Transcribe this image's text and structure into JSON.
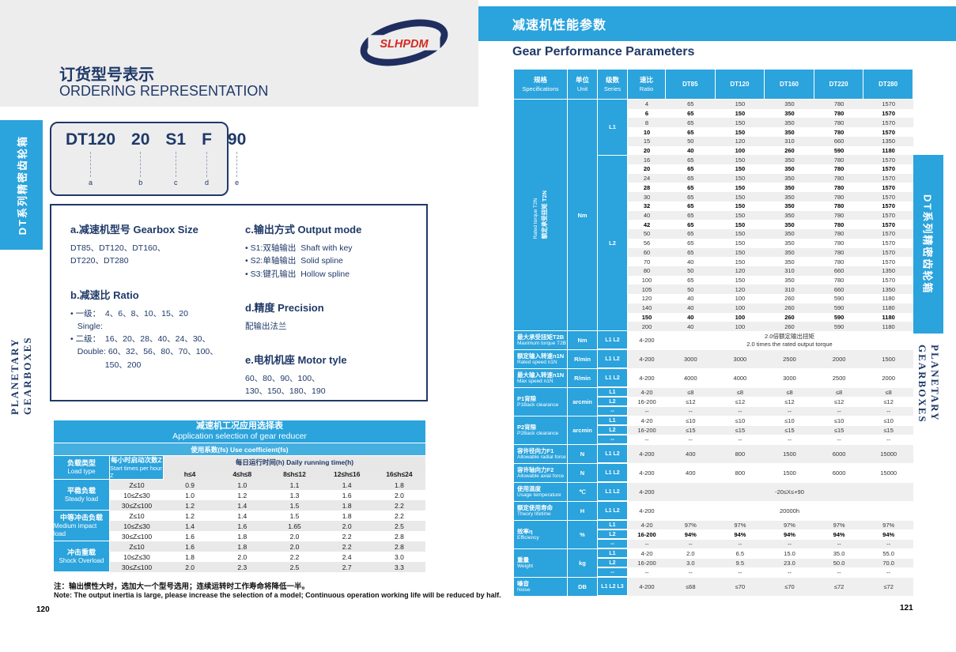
{
  "colors": {
    "accent_blue": "#2BA3DC",
    "subheader_blue": "#45AFE0",
    "navy": "#1F3968",
    "band_gray": "#EDEDEE",
    "stripe_gray": "#EFEFEF",
    "logo_red": "#D42B1E"
  },
  "left": {
    "page_number": "120",
    "logo_text": "SLHPDM",
    "title_cn": "订货型号表示",
    "title_en": "ORDERING REPRESENTATION",
    "sidebar_tab": "DT系列精密齿轮箱",
    "sidebar_series": "PLANETARY GEARBOXES",
    "model_tokens": [
      {
        "code": "DT120",
        "key": "a"
      },
      {
        "code": "20",
        "key": "b"
      },
      {
        "code": "S1",
        "key": "c"
      },
      {
        "code": "F",
        "key": "d"
      },
      {
        "code": "90",
        "key": "e"
      }
    ],
    "legend_col1": [
      {
        "heading": "a.减速机型号 Gearbox Size",
        "lines": [
          "DT85、DT120、DT160、",
          "DT220、DT280"
        ]
      },
      {
        "heading": "b.减速比 Ratio",
        "lines": [
          "• 一级：  4、6、8、10、15、20",
          "   Single:",
          "• 二级：  16、20、28、40、24、30、",
          "   Double: 60、32、56、80、70、100、",
          "               150、200"
        ]
      }
    ],
    "legend_col2": [
      {
        "heading": "c.输出方式 Output mode",
        "lines": [
          "• S1:双轴输出  Shaft with key",
          "• S2:单轴输出  Solid spline",
          "• S3:键孔输出  Hollow spline"
        ]
      },
      {
        "heading": "d.精度 Precision",
        "lines": [
          "配输出法兰"
        ]
      },
      {
        "heading": "e.电机机座 Motor tyle",
        "lines": [
          "60、80、90、100、",
          "130、150、180、190"
        ]
      }
    ],
    "app_table": {
      "title_cn": "减速机工况应用选择表",
      "title_en": "Application selection of gear reducer",
      "coeff": "使用系数(fs)   Use coefficient(fs)",
      "load_cn": "负载类型",
      "load_en": "Load type",
      "start_cn": "每小时启动次数Z",
      "start_en": "Start times per hour Z",
      "daily": "每日运行时间(h)   Daily running time(h)",
      "time_cols": [
        "h≤4",
        "4≤h≤8",
        "8≤h≤12",
        "12≤h≤16",
        "16≤h≤24"
      ],
      "groups": [
        {
          "cn": "平稳负载",
          "en": "Steady load",
          "rows": [
            [
              "Z≤10",
              "0.9",
              "1.0",
              "1.1",
              "1.4",
              "1.8"
            ],
            [
              "10≤Z≤30",
              "1.0",
              "1.2",
              "1.3",
              "1.6",
              "2.0"
            ],
            [
              "30≤Z≤100",
              "1.2",
              "1.4",
              "1.5",
              "1.8",
              "2.2"
            ]
          ]
        },
        {
          "cn": "中等冲击负载",
          "en": "Medium impact load",
          "rows": [
            [
              "Z≤10",
              "1.2",
              "1.4",
              "1.5",
              "1.8",
              "2.2"
            ],
            [
              "10≤Z≤30",
              "1.4",
              "1.6",
              "1.65",
              "2.0",
              "2.5"
            ],
            [
              "30≤Z≤100",
              "1.6",
              "1.8",
              "2.0",
              "2.2",
              "2.8"
            ]
          ]
        },
        {
          "cn": "冲击重载",
          "en": "Shock Overload",
          "rows": [
            [
              "Z≤10",
              "1.6",
              "1.8",
              "2.0",
              "2.2",
              "2.8"
            ],
            [
              "10≤Z≤30",
              "1.8",
              "2.0",
              "2.2",
              "2.4",
              "3.0"
            ],
            [
              "30≤Z≤100",
              "2.0",
              "2.3",
              "2.5",
              "2.7",
              "3.3"
            ]
          ]
        }
      ]
    },
    "note_cn": "注：输出惯性大时，选加大一个型号选用；连续运转时工作寿命将降低一半。",
    "note_en": "Note: The output inertia is large, please increase the selection of a model; Continuous operation working life will be reduced by half."
  },
  "right": {
    "page_number": "121",
    "banner_cn": "减速机性能参数",
    "title_en": "Gear Performance Parameters",
    "sidebar_tab": "DT系列精密齿轮箱",
    "sidebar_series": "PLANETARY GEARBOXES",
    "table": {
      "header": {
        "specs_cn": "规格",
        "specs_en": "Specifications",
        "unit_cn": "单位",
        "unit_en": "Unit",
        "series_cn": "级数",
        "series_en": "Series",
        "ratio_cn": "速比",
        "ratio_en": "Ratio",
        "models": [
          "DT85",
          "DT120",
          "DT160",
          "DT220",
          "DT280"
        ]
      },
      "torque": {
        "label_cn": "额定承受扭矩 T2N",
        "label_en": "Rated torque T2N",
        "unit": "Nm",
        "sections": [
          {
            "series": "L1",
            "rows": [
              {
                "ratio": "4",
                "values": [
                  "65",
                  "150",
                  "350",
                  "780",
                  "1570"
                ],
                "bold": false
              },
              {
                "ratio": "6",
                "values": [
                  "65",
                  "150",
                  "350",
                  "780",
                  "1570"
                ],
                "bold": true
              },
              {
                "ratio": "8",
                "values": [
                  "65",
                  "150",
                  "350",
                  "780",
                  "1570"
                ],
                "bold": false
              },
              {
                "ratio": "10",
                "values": [
                  "65",
                  "150",
                  "350",
                  "780",
                  "1570"
                ],
                "bold": true
              },
              {
                "ratio": "15",
                "values": [
                  "50",
                  "120",
                  "310",
                  "660",
                  "1350"
                ],
                "bold": false
              },
              {
                "ratio": "20",
                "values": [
                  "40",
                  "100",
                  "260",
                  "590",
                  "1180"
                ],
                "bold": true
              }
            ]
          },
          {
            "series": "L2",
            "rows": [
              {
                "ratio": "16",
                "values": [
                  "65",
                  "150",
                  "350",
                  "780",
                  "1570"
                ],
                "bold": false
              },
              {
                "ratio": "20",
                "values": [
                  "65",
                  "150",
                  "350",
                  "780",
                  "1570"
                ],
                "bold": true
              },
              {
                "ratio": "24",
                "values": [
                  "65",
                  "150",
                  "350",
                  "780",
                  "1570"
                ],
                "bold": false
              },
              {
                "ratio": "28",
                "values": [
                  "65",
                  "150",
                  "350",
                  "780",
                  "1570"
                ],
                "bold": true
              },
              {
                "ratio": "30",
                "values": [
                  "65",
                  "150",
                  "350",
                  "780",
                  "1570"
                ],
                "bold": false
              },
              {
                "ratio": "32",
                "values": [
                  "65",
                  "150",
                  "350",
                  "780",
                  "1570"
                ],
                "bold": true
              },
              {
                "ratio": "40",
                "values": [
                  "65",
                  "150",
                  "350",
                  "780",
                  "1570"
                ],
                "bold": false
              },
              {
                "ratio": "42",
                "values": [
                  "65",
                  "150",
                  "350",
                  "780",
                  "1570"
                ],
                "bold": true
              },
              {
                "ratio": "50",
                "values": [
                  "65",
                  "150",
                  "350",
                  "780",
                  "1570"
                ],
                "bold": false
              },
              {
                "ratio": "56",
                "values": [
                  "65",
                  "150",
                  "350",
                  "780",
                  "1570"
                ],
                "bold": false
              },
              {
                "ratio": "60",
                "values": [
                  "65",
                  "150",
                  "350",
                  "780",
                  "1570"
                ],
                "bold": false
              },
              {
                "ratio": "70",
                "values": [
                  "40",
                  "150",
                  "350",
                  "780",
                  "1570"
                ],
                "bold": false
              },
              {
                "ratio": "80",
                "values": [
                  "50",
                  "120",
                  "310",
                  "660",
                  "1350"
                ],
                "bold": false
              },
              {
                "ratio": "100",
                "values": [
                  "65",
                  "150",
                  "350",
                  "780",
                  "1570"
                ],
                "bold": false
              },
              {
                "ratio": "105",
                "values": [
                  "50",
                  "120",
                  "310",
                  "660",
                  "1350"
                ],
                "bold": false
              },
              {
                "ratio": "120",
                "values": [
                  "40",
                  "100",
                  "260",
                  "590",
                  "1180"
                ],
                "bold": false
              },
              {
                "ratio": "140",
                "values": [
                  "40",
                  "100",
                  "260",
                  "590",
                  "1180"
                ],
                "bold": false
              },
              {
                "ratio": "150",
                "values": [
                  "40",
                  "100",
                  "260",
                  "590",
                  "1180"
                ],
                "bold": true
              },
              {
                "ratio": "200",
                "values": [
                  "40",
                  "100",
                  "260",
                  "590",
                  "1180"
                ],
                "bold": false
              }
            ]
          }
        ]
      },
      "params": [
        {
          "cn": "最大承受扭矩T2B",
          "en": "Maximum torque T2B",
          "unit": "Nm",
          "rows": [
            {
              "series": "L1 L2",
              "ratio": "4-200",
              "span": [
                "2.0倍额定输出扭矩",
                "2.0 times the rated output torque"
              ]
            }
          ]
        },
        {
          "cn": "额定输入转速n1N",
          "en": "Rated speed n1N",
          "unit": "R/min",
          "rows": [
            {
              "series": "L1 L2",
              "ratio": "4-200",
              "values": [
                "3000",
                "3000",
                "2500",
                "2000",
                "1500"
              ]
            }
          ]
        },
        {
          "cn": "最大输入转速n1N",
          "en": "Max speed n1N",
          "unit": "R/min",
          "rows": [
            {
              "series": "L1 L2",
              "ratio": "4-200",
              "values": [
                "4000",
                "4000",
                "3000",
                "2500",
                "2000"
              ]
            }
          ]
        },
        {
          "cn": "P1背隙",
          "en": "P1Back clearance",
          "unit": "arcmin",
          "rows": [
            {
              "series": "L1",
              "ratio": "4-20",
              "values": [
                "≤8",
                "≤8",
                "≤8",
                "≤8",
                "≤8"
              ]
            },
            {
              "series": "L2",
              "ratio": "16-200",
              "values": [
                "≤12",
                "≤12",
                "≤12",
                "≤12",
                "≤12"
              ]
            },
            {
              "series": "--",
              "ratio": "--",
              "values": [
                "--",
                "--",
                "--",
                "--",
                "--"
              ]
            }
          ]
        },
        {
          "cn": "P2背隙",
          "en": "P2Back clearance",
          "unit": "arcmin",
          "rows": [
            {
              "series": "L1",
              "ratio": "4-20",
              "values": [
                "≤10",
                "≤10",
                "≤10",
                "≤10",
                "≤10"
              ]
            },
            {
              "series": "L2",
              "ratio": "16-200",
              "values": [
                "≤15",
                "≤15",
                "≤15",
                "≤15",
                "≤15"
              ]
            },
            {
              "series": "--",
              "ratio": "--",
              "values": [
                "--",
                "--",
                "--",
                "--",
                "--"
              ]
            }
          ]
        },
        {
          "cn": "容许径向力F1",
          "en": "Allowable radial force",
          "unit": "N",
          "rows": [
            {
              "series": "L1 L2",
              "ratio": "4-200",
              "values": [
                "400",
                "800",
                "1500",
                "6000",
                "15000"
              ]
            }
          ]
        },
        {
          "cn": "容许轴向力F2",
          "en": "Allowable axial force",
          "unit": "N",
          "rows": [
            {
              "series": "L1 L2",
              "ratio": "4-200",
              "values": [
                "400",
                "800",
                "1500",
                "6000",
                "15000"
              ]
            }
          ]
        },
        {
          "cn": "使用温度",
          "en": "Usage temperature",
          "unit": "℃",
          "rows": [
            {
              "series": "L1 L2",
              "ratio": "4-200",
              "span": [
                "-20≤X≤+90"
              ]
            }
          ]
        },
        {
          "cn": "额定使用寿命",
          "en": "Theory lifetime",
          "unit": "H",
          "rows": [
            {
              "series": "L1 L2",
              "ratio": "4-200",
              "span": [
                "20000h"
              ]
            }
          ]
        },
        {
          "cn": "效率η",
          "en": "Efficiency",
          "unit": "%",
          "rows": [
            {
              "series": "L1",
              "ratio": "4-20",
              "values": [
                "97%",
                "97%",
                "97%",
                "97%",
                "97%"
              ]
            },
            {
              "series": "L2",
              "ratio": "16-200",
              "values": [
                "94%",
                "94%",
                "94%",
                "94%",
                "94%"
              ],
              "bold": true
            },
            {
              "series": "--",
              "ratio": "--",
              "values": [
                "--",
                "--",
                "--",
                "--",
                "--"
              ]
            }
          ]
        },
        {
          "cn": "重量",
          "en": "Weight",
          "unit": "kg",
          "rows": [
            {
              "series": "L1",
              "ratio": "4-20",
              "values": [
                "2.0",
                "6.5",
                "15.0",
                "35.0",
                "55.0"
              ]
            },
            {
              "series": "L2",
              "ratio": "16-200",
              "values": [
                "3.0",
                "9.5",
                "23.0",
                "50.0",
                "70.0"
              ]
            },
            {
              "series": "--",
              "ratio": "--",
              "values": [
                "--",
                "--",
                "--",
                "--",
                "--"
              ]
            }
          ]
        },
        {
          "cn": "噪音",
          "en": "Noise",
          "unit": "DB",
          "rows": [
            {
              "series": "L1 L2 L3",
              "ratio": "4-200",
              "values": [
                "≤68",
                "≤70",
                "≤70",
                "≤72",
                "≤72"
              ]
            }
          ]
        }
      ]
    }
  }
}
